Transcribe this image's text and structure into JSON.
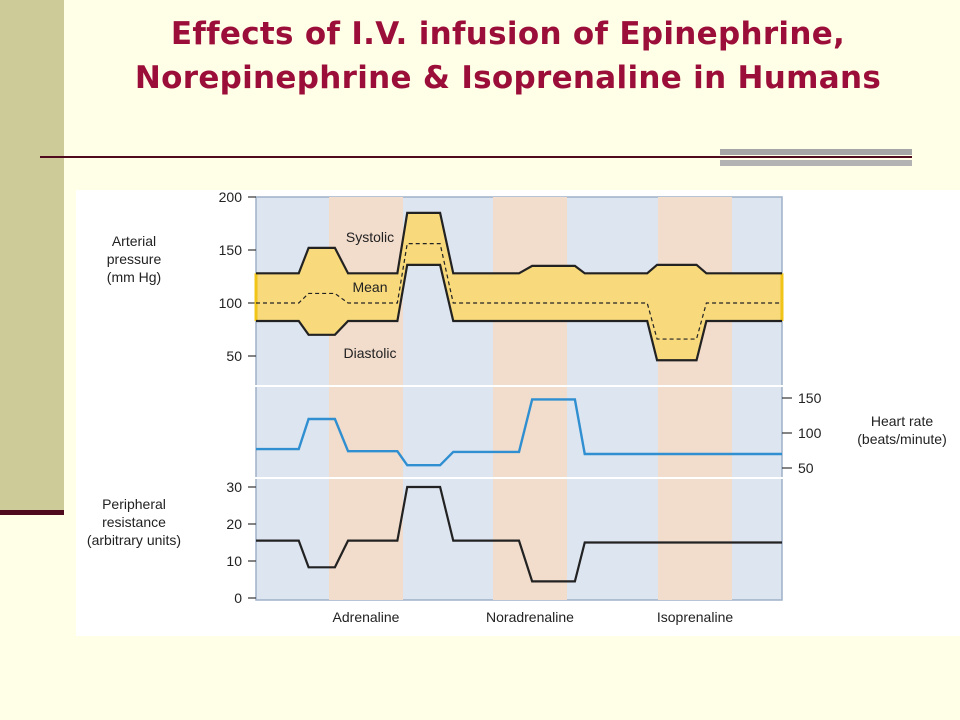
{
  "slide": {
    "title": "Effects of I.V. infusion of Epinephrine, Norepinephrine & Isoprenaline in Humans"
  },
  "colors": {
    "background": "#fffee6",
    "sidebar": "#cdcb98",
    "title": "#9c0e3a",
    "panel": "#dde5f1",
    "infusion_band": "#f2dccc",
    "pressure_fill": "#f8d97c",
    "pressure_outline": "#f0c418",
    "heart_rate_line": "#2f8fd0",
    "line": "#222222"
  },
  "chart_data": {
    "type": "line",
    "categories": [
      "Adrenaline",
      "Noradrenaline",
      "Isoprenaline"
    ],
    "panels": [
      {
        "id": "arterial_pressure",
        "label": [
          "Arterial",
          "pressure",
          "(mm Hg)"
        ],
        "yticks": [
          200,
          150,
          100,
          50
        ],
        "ylim": [
          0,
          200
        ],
        "axis": "left",
        "series": [
          {
            "name": "Systolic",
            "x": [
              0,
              6.5,
              8,
              12,
              14,
              21.5,
              23,
              28,
              30,
              40,
              42,
              48.5,
              50,
              59.5,
              61,
              67,
              68.5,
              74.5,
              76,
              80
            ],
            "y": [
              128,
              128,
              152,
              152,
              128,
              128,
              185,
              185,
              128,
              128,
              135,
              135,
              128,
              128,
              136,
              136,
              128,
              128,
              128,
              128
            ]
          },
          {
            "name": "Mean",
            "x": [
              0,
              6.5,
              8,
              12,
              14,
              21.5,
              23,
              28,
              30,
              40,
              42,
              48.5,
              50,
              59.5,
              61,
              67,
              68.5,
              74.5,
              76,
              80
            ],
            "y": [
              100,
              100,
              109,
              109,
              100,
              100,
              156,
              156,
              100,
              100,
              100,
              100,
              100,
              100,
              66,
              66,
              100,
              100,
              100,
              100
            ]
          },
          {
            "name": "Diastolic",
            "x": [
              0,
              6.5,
              8,
              12,
              14,
              21.5,
              23,
              28,
              30,
              40,
              42,
              48.5,
              50,
              59.5,
              61,
              67,
              68.5,
              74.5,
              76,
              80
            ],
            "y": [
              83,
              83,
              70,
              70,
              83,
              83,
              136,
              136,
              83,
              83,
              83,
              83,
              83,
              83,
              46,
              46,
              83,
              83,
              83,
              83
            ]
          }
        ]
      },
      {
        "id": "heart_rate",
        "label": [
          "Heart rate",
          "(beats/minute)"
        ],
        "yticks": [
          150,
          100,
          50
        ],
        "ylim": [
          50,
          150
        ],
        "axis": "right",
        "series": [
          {
            "name": "Heart rate",
            "x": [
              0,
              6.5,
              8,
              12,
              14,
              21.5,
              23,
              28,
              30,
              40,
              42,
              48.5,
              50,
              59.5,
              61,
              67,
              68.5,
              74.5,
              76,
              80
            ],
            "y": [
              77,
              77,
              120,
              120,
              74,
              74,
              54,
              54,
              73,
              73,
              148,
              148,
              70,
              70,
              70,
              70,
              70,
              70,
              70,
              70
            ]
          }
        ]
      },
      {
        "id": "peripheral_resistance",
        "label": [
          "Peripheral",
          "resistance",
          "(arbitrary units)"
        ],
        "yticks": [
          30,
          20,
          10,
          0
        ],
        "ylim": [
          0,
          30
        ],
        "axis": "left",
        "series": [
          {
            "name": "Peripheral resistance",
            "x": [
              0,
              6.5,
              8,
              12,
              14,
              21.5,
              23,
              28,
              30,
              40,
              42,
              48.5,
              50,
              59.5,
              61,
              67,
              68.5,
              74.5,
              76,
              80
            ],
            "y": [
              15.5,
              15.5,
              8.3,
              8.3,
              15.5,
              15.5,
              30,
              30,
              15.5,
              15.5,
              4.5,
              4.5,
              15,
              15,
              15,
              15,
              15,
              15,
              15,
              15
            ]
          }
        ]
      }
    ]
  }
}
